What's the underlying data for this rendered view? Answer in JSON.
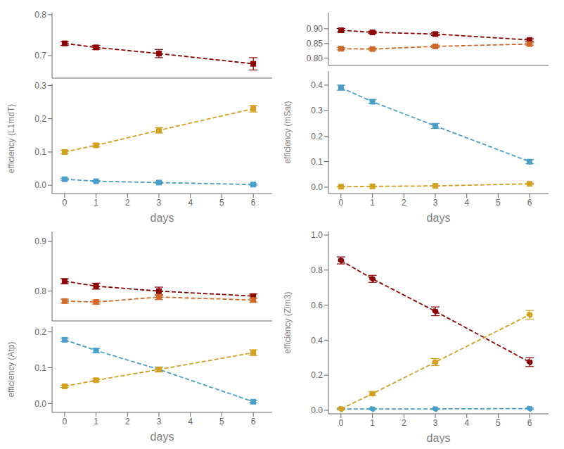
{
  "chart_data": [
    {
      "type": "line",
      "x": [
        0,
        1,
        3,
        6
      ],
      "xlim": [
        -0.4,
        6.6
      ],
      "ylim": [
        0.645,
        0.805
      ],
      "yticks": [
        0.7,
        0.8
      ],
      "tick_labels": "y",
      "series": [
        {
          "color": "#8B0000",
          "marker": "square",
          "line_style": "dashed",
          "values": [
            0.73,
            0.72,
            0.705,
            0.68
          ],
          "yerr": [
            0.005,
            0.005,
            0.01,
            0.015
          ]
        }
      ]
    },
    {
      "type": "line",
      "xlabel": "days",
      "ylabel": "efficiency (L1mdT)",
      "x": [
        0,
        1,
        3,
        6
      ],
      "xlim": [
        -0.4,
        6.6
      ],
      "xticks": [
        0,
        1,
        2,
        3,
        4,
        5,
        6
      ],
      "ylim": [
        -0.025,
        0.305
      ],
      "yticks": [
        {
          "value": 0,
          "label": "0.0"
        },
        0.1,
        0.2,
        0.3
      ],
      "series": [
        {
          "color": "#4A9FC8",
          "marker": "square",
          "line_style": "dashed",
          "values": [
            0.018,
            0.012,
            0.008,
            0.002
          ],
          "yerr": [
            0.003,
            0.002,
            0.002,
            0.002
          ]
        },
        {
          "color": "#D4A020",
          "marker": "square",
          "line_style": "dashed",
          "values": [
            0.1,
            0.12,
            0.165,
            0.23
          ],
          "yerr": [
            0.005,
            0.005,
            0.008,
            0.01
          ]
        }
      ]
    },
    {
      "type": "line",
      "x": [
        0,
        1,
        3,
        6
      ],
      "xlim": [
        -0.4,
        6.6
      ],
      "ylim": [
        0.775,
        0.955
      ],
      "yticks": [
        {
          "value": 0.8,
          "label": "0.80"
        },
        0.85,
        {
          "value": 0.9,
          "label": "0.90"
        }
      ],
      "tick_labels": "y",
      "series": [
        {
          "color": "#8B0000",
          "marker": "square",
          "line_style": "dashed",
          "values": [
            0.895,
            0.888,
            0.882,
            0.862
          ],
          "yerr": [
            0.006,
            0.004,
            0.005,
            0.004
          ]
        },
        {
          "color": "#D06828",
          "marker": "square",
          "line_style": "dashed",
          "values": [
            0.832,
            0.831,
            0.84,
            0.848
          ],
          "yerr": [
            0.004,
            0.003,
            0.004,
            0.004
          ]
        }
      ]
    },
    {
      "type": "line",
      "xlabel": "days",
      "ylabel": "efficiency (mSat)",
      "x": [
        0,
        1,
        3,
        6
      ],
      "xlim": [
        -0.4,
        6.6
      ],
      "xticks": [
        0,
        1,
        2,
        3,
        4,
        5,
        6
      ],
      "ylim": [
        -0.025,
        0.455
      ],
      "yticks": [
        {
          "value": 0,
          "label": "0.0"
        },
        0.1,
        0.2,
        0.3,
        0.4
      ],
      "series": [
        {
          "color": "#4A9FC8",
          "marker": "square",
          "line_style": "dashed",
          "values": [
            0.39,
            0.335,
            0.24,
            0.1
          ],
          "yerr": [
            0.01,
            0.008,
            0.01,
            0.008
          ]
        },
        {
          "color": "#D4A020",
          "marker": "square",
          "line_style": "dashed",
          "values": [
            0.002,
            0.003,
            0.005,
            0.013
          ],
          "yerr": [
            0.001,
            0.001,
            0.001,
            0.002
          ]
        }
      ]
    },
    {
      "type": "line",
      "x": [
        0,
        1,
        3,
        6
      ],
      "xlim": [
        -0.4,
        6.6
      ],
      "ylim": [
        0.74,
        0.92
      ],
      "yticks": [
        0.8,
        0.9
      ],
      "tick_labels": "y",
      "series": [
        {
          "color": "#8B0000",
          "marker": "square",
          "line_style": "dashed",
          "values": [
            0.82,
            0.81,
            0.8,
            0.79
          ],
          "yerr": [
            0.005,
            0.006,
            0.008,
            0.004
          ]
        },
        {
          "color": "#D06828",
          "marker": "square",
          "line_style": "dashed",
          "values": [
            0.78,
            0.778,
            0.788,
            0.782
          ],
          "yerr": [
            0.004,
            0.004,
            0.005,
            0.004
          ]
        }
      ]
    },
    {
      "type": "line",
      "xlabel": "days",
      "ylabel": "efficiency (Atp)",
      "x": [
        0,
        1,
        3,
        6
      ],
      "xlim": [
        -0.4,
        6.6
      ],
      "xticks": [
        0,
        1,
        2,
        3,
        4,
        5,
        6
      ],
      "ylim": [
        -0.025,
        0.215
      ],
      "yticks": [
        {
          "value": 0,
          "label": "0.0"
        },
        0.1,
        0.2
      ],
      "series": [
        {
          "color": "#4A9FC8",
          "marker": "square",
          "line_style": "dashed",
          "values": [
            0.178,
            0.148,
            0.095,
            0.005
          ],
          "yerr": [
            0.005,
            0.006,
            0.007,
            0.003
          ]
        },
        {
          "color": "#D4A020",
          "marker": "square",
          "line_style": "dashed",
          "values": [
            0.048,
            0.065,
            0.095,
            0.142
          ],
          "yerr": [
            0.003,
            0.004,
            0.006,
            0.008
          ]
        }
      ]
    },
    {
      "type": "line",
      "xlabel": "days",
      "ylabel": "efficiency (Zim3)",
      "x": [
        0,
        1,
        3,
        6
      ],
      "xlim": [
        -0.4,
        6.6
      ],
      "xticks": [
        0,
        1,
        2,
        3,
        4,
        5,
        6
      ],
      "ylim": [
        -0.02,
        1.02
      ],
      "yticks": [
        {
          "value": 0,
          "label": "0.0"
        },
        0.2,
        0.4,
        0.6,
        0.8,
        {
          "value": 1,
          "label": "1.0"
        }
      ],
      "series": [
        {
          "color": "#8B0000",
          "marker": "circle",
          "line_style": "dashed",
          "values": [
            0.855,
            0.75,
            0.565,
            0.275
          ],
          "yerr": [
            0.02,
            0.02,
            0.025,
            0.025
          ]
        },
        {
          "color": "#4A9FC8",
          "marker": "circle",
          "line_style": "dashed",
          "values": [
            0.008,
            0.008,
            0.008,
            0.01
          ],
          "yerr": [
            0.003,
            0.003,
            0.003,
            0.003
          ]
        },
        {
          "color": "#D4A020",
          "marker": "circle",
          "line_style": "dashed",
          "values": [
            0.008,
            0.095,
            0.275,
            0.545
          ],
          "yerr": [
            0.005,
            0.012,
            0.02,
            0.025
          ]
        }
      ]
    }
  ]
}
